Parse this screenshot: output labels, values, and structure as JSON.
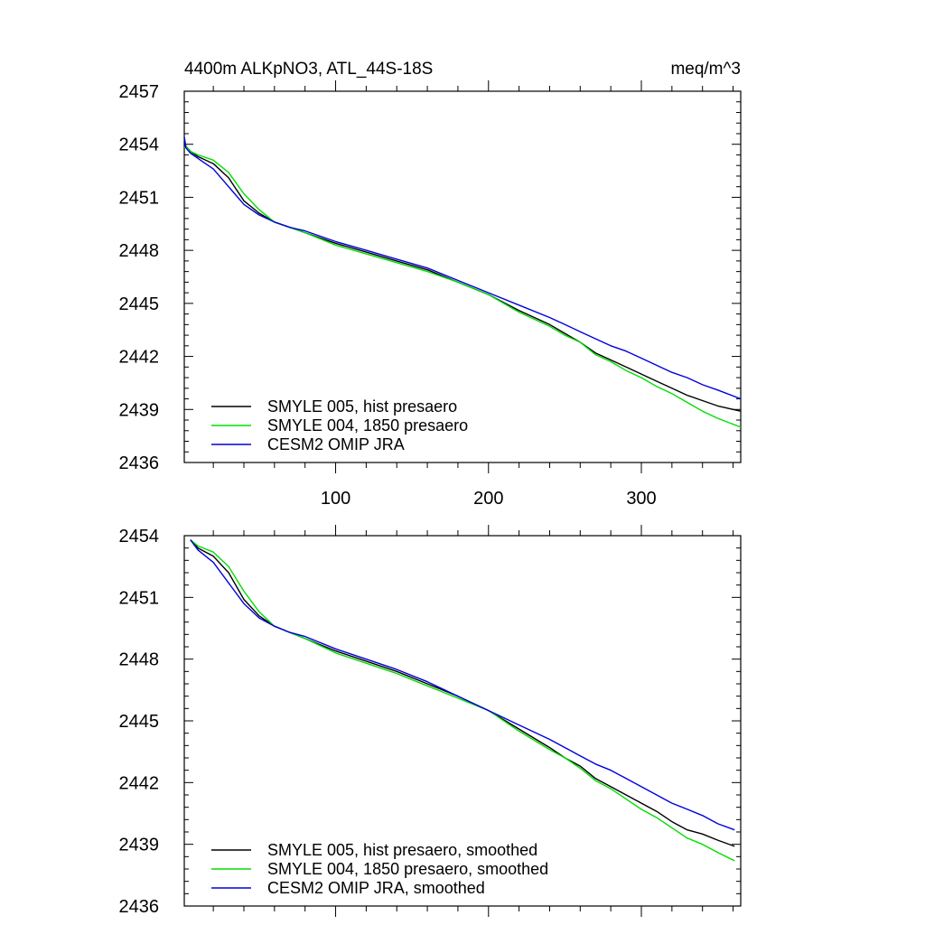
{
  "figure": {
    "title_left": "4400m ALKpNO3, ATL_44S-18S",
    "title_right": "meq/m^3"
  },
  "chart_data": [
    {
      "type": "line",
      "panel": "top",
      "title": "4400m ALKpNO3, ATL_44S-18S",
      "units": "meq/m^3",
      "xlim": [
        1,
        365
      ],
      "ylim": [
        2436,
        2457
      ],
      "x_ticks": [
        100,
        200,
        300
      ],
      "x_tick_labels": [
        "100",
        "200",
        "300"
      ],
      "y_ticks": [
        2436,
        2439,
        2442,
        2445,
        2448,
        2451,
        2454,
        2457
      ],
      "y_tick_labels": [
        "2436",
        "2439",
        "2442",
        "2445",
        "2448",
        "2451",
        "2454",
        "2457"
      ],
      "legend_position": "bottom-left",
      "series": [
        {
          "name": "SMYLE 005, hist presaero",
          "color": "#000000",
          "x": [
            1,
            2,
            5,
            10,
            20,
            30,
            40,
            50,
            60,
            70,
            80,
            100,
            120,
            140,
            160,
            180,
            200,
            220,
            240,
            250,
            260,
            270,
            280,
            290,
            300,
            310,
            320,
            330,
            340,
            350,
            365
          ],
          "y": [
            2454.4,
            2453.9,
            2453.6,
            2453.3,
            2452.9,
            2452.1,
            2450.8,
            2450.1,
            2449.6,
            2449.3,
            2449.0,
            2448.4,
            2447.9,
            2447.4,
            2446.9,
            2446.2,
            2445.5,
            2444.6,
            2443.8,
            2443.3,
            2442.8,
            2442.2,
            2441.8,
            2441.4,
            2441.0,
            2440.6,
            2440.2,
            2439.8,
            2439.5,
            2439.2,
            2438.9
          ]
        },
        {
          "name": "SMYLE 004, 1850 presaero",
          "color": "#00dd00",
          "x": [
            1,
            2,
            5,
            10,
            20,
            30,
            40,
            50,
            60,
            70,
            80,
            100,
            120,
            140,
            160,
            180,
            200,
            220,
            240,
            250,
            260,
            270,
            280,
            290,
            300,
            310,
            320,
            330,
            340,
            350,
            365
          ],
          "y": [
            2454.4,
            2453.9,
            2453.6,
            2453.4,
            2453.1,
            2452.4,
            2451.2,
            2450.3,
            2449.6,
            2449.3,
            2449.0,
            2448.3,
            2447.8,
            2447.3,
            2446.8,
            2446.2,
            2445.5,
            2444.5,
            2443.7,
            2443.2,
            2442.8,
            2442.1,
            2441.7,
            2441.2,
            2440.8,
            2440.3,
            2439.9,
            2439.4,
            2438.9,
            2438.5,
            2438.0
          ]
        },
        {
          "name": "CESM2 OMIP JRA",
          "color": "#0000dd",
          "x": [
            1,
            2,
            5,
            10,
            20,
            30,
            40,
            50,
            60,
            70,
            80,
            100,
            120,
            140,
            160,
            180,
            200,
            220,
            240,
            250,
            260,
            270,
            280,
            290,
            300,
            310,
            320,
            330,
            340,
            350,
            365
          ],
          "y": [
            2454.4,
            2453.8,
            2453.5,
            2453.2,
            2452.6,
            2451.6,
            2450.6,
            2450.0,
            2449.6,
            2449.3,
            2449.1,
            2448.5,
            2448.0,
            2447.5,
            2447.0,
            2446.3,
            2445.6,
            2444.9,
            2444.2,
            2443.8,
            2443.4,
            2443.0,
            2442.6,
            2442.3,
            2441.9,
            2441.5,
            2441.1,
            2440.8,
            2440.4,
            2440.1,
            2439.6
          ]
        }
      ]
    },
    {
      "type": "line",
      "panel": "bottom",
      "title": "",
      "xlim": [
        1,
        365
      ],
      "ylim": [
        2436,
        2454
      ],
      "x_ticks": [
        100,
        200,
        300
      ],
      "y_ticks": [
        2436,
        2439,
        2442,
        2445,
        2448,
        2451,
        2454
      ],
      "y_tick_labels": [
        "2436",
        "2439",
        "2442",
        "2445",
        "2448",
        "2451",
        "2454"
      ],
      "legend_position": "bottom-left",
      "series": [
        {
          "name": "SMYLE 005, hist presaero, smoothed",
          "color": "#000000",
          "x": [
            5,
            10,
            20,
            30,
            40,
            50,
            60,
            70,
            80,
            100,
            120,
            140,
            160,
            180,
            200,
            220,
            240,
            250,
            260,
            270,
            280,
            290,
            300,
            310,
            320,
            330,
            340,
            350,
            361
          ],
          "y": [
            2453.8,
            2453.4,
            2453.0,
            2452.2,
            2450.9,
            2450.1,
            2449.6,
            2449.3,
            2449.0,
            2448.4,
            2447.9,
            2447.4,
            2446.8,
            2446.2,
            2445.5,
            2444.6,
            2443.7,
            2443.2,
            2442.8,
            2442.2,
            2441.8,
            2441.4,
            2441.0,
            2440.6,
            2440.1,
            2439.7,
            2439.5,
            2439.2,
            2438.9
          ]
        },
        {
          "name": "SMYLE 004, 1850 presaero, smoothed",
          "color": "#00dd00",
          "x": [
            5,
            10,
            20,
            30,
            40,
            50,
            60,
            70,
            80,
            100,
            120,
            140,
            160,
            180,
            200,
            220,
            240,
            250,
            260,
            270,
            280,
            290,
            300,
            310,
            320,
            330,
            340,
            350,
            361
          ],
          "y": [
            2453.8,
            2453.5,
            2453.2,
            2452.5,
            2451.3,
            2450.3,
            2449.6,
            2449.3,
            2449.0,
            2448.3,
            2447.8,
            2447.3,
            2446.7,
            2446.1,
            2445.5,
            2444.5,
            2443.6,
            2443.2,
            2442.7,
            2442.1,
            2441.7,
            2441.2,
            2440.7,
            2440.3,
            2439.8,
            2439.3,
            2439.0,
            2438.6,
            2438.2
          ]
        },
        {
          "name": "CESM2 OMIP JRA, smoothed",
          "color": "#0000dd",
          "x": [
            5,
            10,
            20,
            30,
            40,
            50,
            60,
            70,
            80,
            100,
            120,
            140,
            160,
            180,
            200,
            220,
            240,
            250,
            260,
            270,
            280,
            290,
            300,
            310,
            320,
            330,
            340,
            350,
            361
          ],
          "y": [
            2453.8,
            2453.3,
            2452.7,
            2451.7,
            2450.7,
            2450.0,
            2449.6,
            2449.3,
            2449.1,
            2448.5,
            2448.0,
            2447.5,
            2446.9,
            2446.2,
            2445.5,
            2444.8,
            2444.1,
            2443.7,
            2443.3,
            2442.9,
            2442.6,
            2442.2,
            2441.8,
            2441.4,
            2441.0,
            2440.7,
            2440.4,
            2440.0,
            2439.7
          ]
        }
      ]
    }
  ]
}
